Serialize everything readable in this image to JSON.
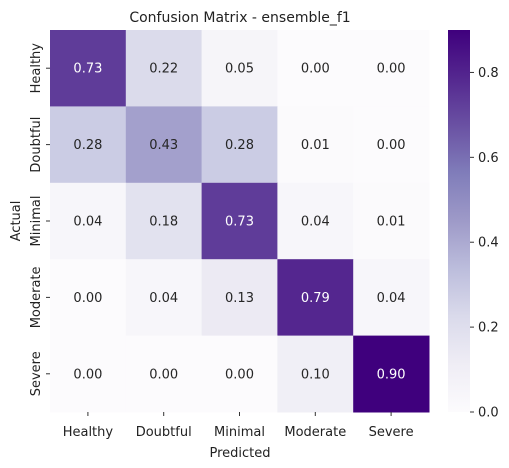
{
  "chart_data": {
    "type": "heatmap",
    "title": "Confusion Matrix - ensemble_f1",
    "xlabel": "Predicted",
    "ylabel": "Actual",
    "x_categories": [
      "Healthy",
      "Doubtful",
      "Minimal",
      "Moderate",
      "Severe"
    ],
    "y_categories": [
      "Healthy",
      "Doubtful",
      "Minimal",
      "Moderate",
      "Severe"
    ],
    "values": [
      [
        0.73,
        0.22,
        0.05,
        0.0,
        0.0
      ],
      [
        0.28,
        0.43,
        0.28,
        0.01,
        0.0
      ],
      [
        0.04,
        0.18,
        0.73,
        0.04,
        0.01
      ],
      [
        0.0,
        0.04,
        0.13,
        0.79,
        0.04
      ],
      [
        0.0,
        0.0,
        0.0,
        0.1,
        0.9
      ]
    ],
    "value_format": "0.00",
    "colormap": "Purples",
    "color_range": [
      0.0,
      0.9
    ],
    "colorbar": {
      "ticks": [
        0.0,
        0.2,
        0.4,
        0.6,
        0.8
      ],
      "tick_labels": [
        "0.0",
        "0.2",
        "0.4",
        "0.6",
        "0.8"
      ]
    },
    "grid": false
  }
}
